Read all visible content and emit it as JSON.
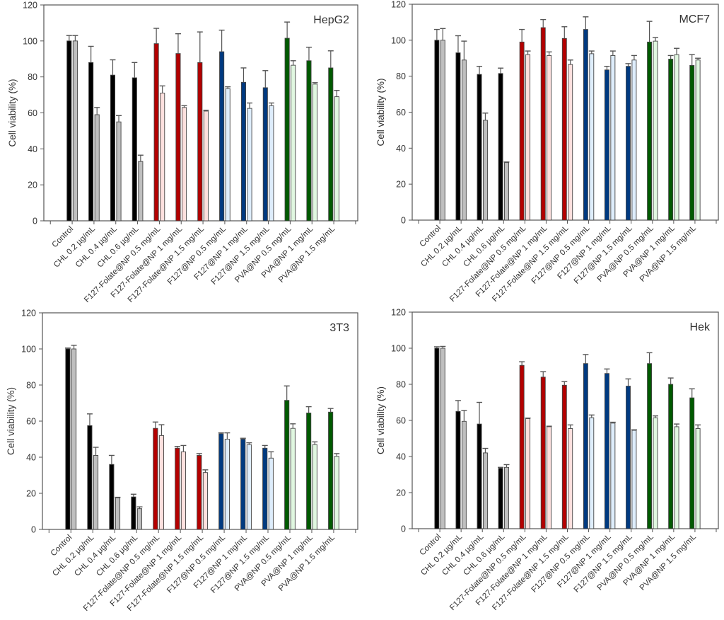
{
  "chart_data": [
    {
      "type": "bar",
      "title": "HepG2",
      "xlabel": "",
      "ylabel": "Cell viability (%)",
      "ylim": [
        0,
        120
      ],
      "yticks": [
        0,
        20,
        40,
        60,
        80,
        100,
        120
      ],
      "grid": false,
      "categories": [
        "Control",
        "CHL 0.2 µg/mL",
        "CHL 0.4 µg/mL",
        "CHL 0.6 µg/mL",
        "F127-Folate@NP 0.5 mg/mL",
        "F127-Folate@NP 1 mg/mL",
        "F127-Folate@NP 1.5 mg/mL",
        "F127@NP 0.5 mg/mL",
        "F127@NP 1 mg/mL",
        "F127@NP 1.5 mg/mL",
        "PVA@NP  0.5 mg/mL",
        "PVA@NP 1 mg/mL",
        "PVA@NP 1.5 mg/mL"
      ],
      "series": [
        {
          "name": "dark",
          "values": [
            100,
            88,
            81,
            79.5,
            98.5,
            93,
            88,
            94,
            77,
            74,
            101.5,
            89,
            85
          ],
          "errors": [
            3,
            9,
            8.5,
            8.5,
            8.5,
            11,
            17,
            12,
            8,
            9.5,
            9,
            7.5,
            9.5
          ]
        },
        {
          "name": "light",
          "values": [
            100,
            59,
            55,
            33,
            71,
            63,
            61,
            73.5,
            62.5,
            64,
            86.5,
            76,
            69
          ],
          "errors": [
            3,
            4,
            3.5,
            3.5,
            4,
            1,
            0.5,
            1,
            3,
            1.5,
            2.5,
            0.8,
            3.5
          ]
        }
      ]
    },
    {
      "type": "bar",
      "title": "MCF7",
      "xlabel": "",
      "ylabel": "Cell viability (%)",
      "ylim": [
        0,
        120
      ],
      "yticks": [
        0,
        20,
        40,
        60,
        80,
        100,
        120
      ],
      "grid": false,
      "categories": [
        "Control",
        "CHL 0.2 µg/mL",
        "CHL 0.4 µg/mL",
        "CHL 0.6 µg/mL",
        "F127-Folate@NP 0.5 mg/mL",
        "F127-Folate@NP 1 mg/mL",
        "F127-Folate@NP 1.5 mg/mL",
        "F127@NP 0.5 mg/mL",
        "F127@NP 1 mg/mL",
        "F127@NP 1.5 mg/mL",
        "PVA@NP  0.5 mg/mL",
        "PVA@NP 1 mg/mL",
        "PVA@NP 1.5 mg/mL"
      ],
      "series": [
        {
          "name": "dark",
          "values": [
            100,
            93,
            81,
            81.5,
            99,
            107,
            101,
            106,
            83.5,
            85.5,
            99,
            89.5,
            86
          ],
          "errors": [
            6,
            9.5,
            4.5,
            3,
            7,
            4.5,
            6.5,
            7,
            2,
            1.5,
            11.5,
            2,
            6
          ]
        },
        {
          "name": "light",
          "values": [
            100,
            89,
            55.5,
            32,
            92,
            91.5,
            86.5,
            92.5,
            91.5,
            89,
            99.5,
            92,
            89
          ],
          "errors": [
            6.5,
            10.5,
            4,
            0.3,
            2,
            2,
            2.5,
            1.5,
            2.5,
            2.5,
            2,
            3.5,
            1
          ]
        }
      ]
    },
    {
      "type": "bar",
      "title": "3T3",
      "xlabel": "",
      "ylabel": "Cell viability (%)",
      "ylim": [
        0,
        120
      ],
      "yticks": [
        0,
        20,
        40,
        60,
        80,
        100,
        120
      ],
      "grid": false,
      "categories": [
        "Control",
        "CHL 0.2 µg/mL",
        "CHL 0.4 µg/mL",
        "CHL 0.6 µg/mL",
        "F127-Folate@NP 0.5 mg/mL",
        "F127-Folate@NP 1 mg/mL",
        "F127-Folate@NP 1.5 mg/mL",
        "F127@NP 0.5 mg/mL",
        "F127@NP 1 mg/mL",
        "F127@NP 1.5 mg/mL",
        "PVA@NP  0.5 mg/mL",
        "PVA@NP 1 mg/mL",
        "PVA@NP 1.5 mg/mL"
      ],
      "series": [
        {
          "name": "dark",
          "values": [
            100,
            57.5,
            36,
            18,
            56,
            45,
            41,
            53,
            50,
            45,
            71.5,
            64.5,
            65
          ],
          "errors": [
            0.5,
            6.5,
            5,
            1.5,
            3.5,
            1,
            1,
            0.5,
            0.5,
            1.5,
            8,
            3.5,
            2
          ]
        },
        {
          "name": "light",
          "values": [
            100,
            41,
            17.5,
            11.5,
            52,
            43,
            31.5,
            50,
            47,
            39.5,
            56,
            47,
            40.5
          ],
          "errors": [
            2,
            4.5,
            0.3,
            1,
            6,
            3.5,
            1.5,
            3.5,
            1,
            3.5,
            2.5,
            1.5,
            1.5
          ]
        }
      ]
    },
    {
      "type": "bar",
      "title": "Hek",
      "xlabel": "",
      "ylabel": "Cell viability (%)",
      "ylim": [
        0,
        120
      ],
      "yticks": [
        0,
        20,
        40,
        60,
        80,
        100,
        120
      ],
      "grid": false,
      "categories": [
        "Control",
        "CHL 0.2 µg/mL",
        "CHL 0.4 µg/mL",
        "CHL 0.6 µg/mL",
        "F127-Folate@NP 0.5 mg/mL",
        "F127-Folate@NP 1 mg/mL",
        "F127-Folate@NP 1.5 mg/mL",
        "F127@NP 0.5 mg/mL",
        "F127@NP 1 mg/mL",
        "F127@NP 1.5 mg/mL",
        "PVA@NP  0.5 mg/mL",
        "PVA@NP 1 mg/mL",
        "PVA@NP 1.5 mg/mL"
      ],
      "series": [
        {
          "name": "dark",
          "values": [
            100,
            65,
            58,
            33.5,
            90.5,
            84,
            79.5,
            91.5,
            86,
            79,
            91.5,
            80,
            72.5
          ],
          "errors": [
            0.8,
            6,
            12,
            0.5,
            2,
            3,
            2,
            5,
            2.5,
            4,
            6,
            3.5,
            5
          ]
        },
        {
          "name": "light",
          "values": [
            100,
            59.5,
            42,
            34,
            61,
            56.5,
            55.5,
            61.5,
            58.5,
            54.5,
            61.5,
            56.5,
            55.5
          ],
          "errors": [
            1,
            6,
            2.5,
            1.5,
            0.3,
            0.3,
            2,
            1.5,
            0.5,
            0.3,
            1,
            1.5,
            2
          ]
        }
      ]
    }
  ],
  "palette": {
    "groups": [
      {
        "dark": "#000000",
        "light": "#bfbfbf"
      },
      {
        "dark": "#000000",
        "light": "#bfbfbf"
      },
      {
        "dark": "#000000",
        "light": "#bfbfbf"
      },
      {
        "dark": "#000000",
        "light": "#bfbfbf"
      },
      {
        "dark": "#b40000",
        "light": "#fde0de"
      },
      {
        "dark": "#b40000",
        "light": "#fde0de"
      },
      {
        "dark": "#b40000",
        "light": "#fde0de"
      },
      {
        "dark": "#003a80",
        "light": "#deedfb"
      },
      {
        "dark": "#003a80",
        "light": "#deedfb"
      },
      {
        "dark": "#003a80",
        "light": "#deedfb"
      },
      {
        "dark": "#005a00",
        "light": "#e0f7e0"
      },
      {
        "dark": "#005a00",
        "light": "#e0f7e0"
      },
      {
        "dark": "#005a00",
        "light": "#e0f7e0"
      }
    ],
    "axis": "#555555",
    "bar_edge": "#444444",
    "error": "#555555"
  }
}
